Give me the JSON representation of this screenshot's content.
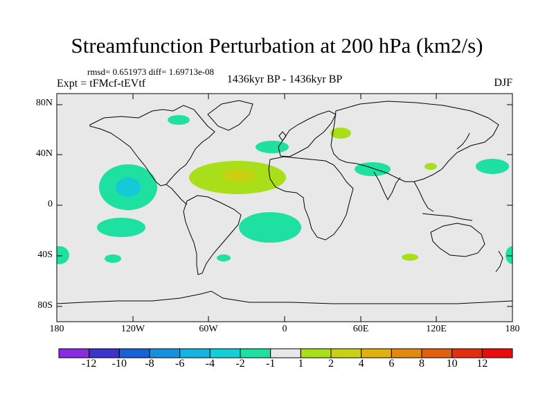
{
  "title": "Streamfunction Perturbation at 200 hPa (km2/s)",
  "stats": "rmsd= 0.651973 diff= 1.69713e-08",
  "expt": "Expt = tFMcf-tEVtf",
  "center_label": "1436kyr BP - 1436kyr BP",
  "season": "DJF",
  "lat_labels": [
    "80N",
    "40N",
    "0",
    "40S",
    "80S"
  ],
  "lon_labels": [
    "180",
    "120W",
    "60W",
    "0",
    "60E",
    "120E",
    "180"
  ],
  "colorbar": {
    "labels": [
      "-12",
      "-10",
      "-8",
      "-6",
      "-4",
      "-2",
      "-1",
      "1",
      "2",
      "4",
      "6",
      "8",
      "10",
      "12"
    ],
    "colors": [
      "#8a2be2",
      "#3b33cc",
      "#1763d6",
      "#1790de",
      "#16b3e0",
      "#12d0d6",
      "#1ee0a0",
      "#e8e8e8",
      "#a8df18",
      "#c8d214",
      "#e0b00e",
      "#e28a10",
      "#e06010",
      "#e03010",
      "#e80c0c"
    ]
  },
  "map": {
    "background": "#e8e8e8",
    "features": [
      {
        "name": "north-pacific-negative-anomaly",
        "category": "-2",
        "color": "#1ee0a0"
      },
      {
        "name": "north-pacific-core",
        "category": "-4",
        "color": "#16c9d9"
      },
      {
        "name": "south-pacific-negative",
        "category": "-2",
        "color": "#1ee0a0"
      },
      {
        "name": "atlantic-positive-anomaly",
        "category": "2",
        "color": "#a8df18"
      },
      {
        "name": "atlantic-positive-core",
        "category": "4",
        "color": "#c8d214"
      },
      {
        "name": "south-atlantic-negative",
        "category": "-2",
        "color": "#1ee0a0"
      },
      {
        "name": "north-atlantic-negative",
        "category": "-2",
        "color": "#1ee0a0"
      },
      {
        "name": "europe-positive",
        "category": "2",
        "color": "#a8df18"
      },
      {
        "name": "arabia-negative",
        "category": "-2",
        "color": "#1ee0a0"
      },
      {
        "name": "east-asia-positive",
        "category": "2",
        "color": "#a8df18"
      },
      {
        "name": "west-pacific-negative",
        "category": "-2",
        "color": "#1ee0a0"
      },
      {
        "name": "hudson-bay-negative",
        "category": "-2",
        "color": "#1ee0a0"
      },
      {
        "name": "south-indian-positive",
        "category": "2",
        "color": "#a8df18"
      }
    ]
  }
}
